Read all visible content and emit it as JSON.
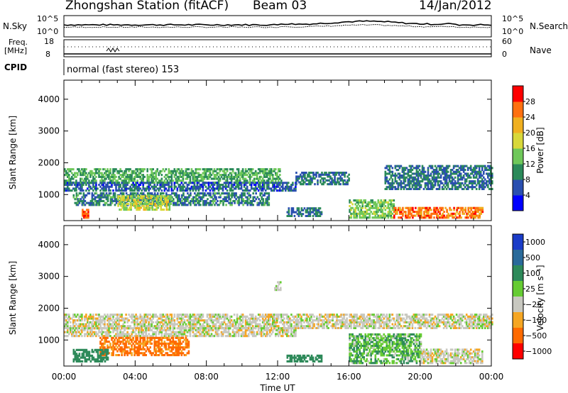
{
  "header": {
    "station": "Zhongshan Station (fitACF)",
    "beam": "Beam 03",
    "date": "14/Jan/2012"
  },
  "strip": {
    "left_top_label": "N.Sky",
    "left_top_ticks": [
      "10^5",
      "10^0"
    ],
    "right_top_label": "N.Search",
    "right_top_ticks": [
      "10^5",
      "10^0"
    ],
    "freq_label_1": "Freq.",
    "freq_label_2": "[MHz]",
    "freq_ticks": [
      "18",
      "8"
    ],
    "nave_label": "Nave",
    "nave_ticks": [
      "60",
      "0"
    ],
    "cpid_label": "CPID",
    "cpid_text": "normal (fast stereo) 153"
  },
  "chart_data": [
    {
      "type": "heatmap",
      "title": "",
      "parameter": "Power",
      "xlabel": "Time UT",
      "ylabel": "Slant Range [km]",
      "x_ticks": [
        "00:00",
        "04:00",
        "08:00",
        "12:00",
        "16:00",
        "20:00",
        "00:00"
      ],
      "xlim": [
        0,
        24
      ],
      "y_ticks": [
        1000,
        2000,
        3000,
        4000
      ],
      "ylim": [
        180,
        4600
      ],
      "colorbar": {
        "label": "Power [dB]",
        "ticks": [
          4,
          8,
          12,
          16,
          20,
          24,
          28
        ],
        "range": [
          0,
          32
        ],
        "colors": [
          "#0000ff",
          "#2a4fb0",
          "#2b8a5a",
          "#6fc85a",
          "#d8d83a",
          "#f0b020",
          "#ff7010",
          "#ff0000"
        ]
      },
      "regions": [
        {
          "t": [
            0.0,
            12.2
          ],
          "r": [
            1350,
            1800
          ],
          "level": 12
        },
        {
          "t": [
            0.0,
            13.0
          ],
          "r": [
            1100,
            1350
          ],
          "level": 7
        },
        {
          "t": [
            0.5,
            11.5
          ],
          "r": [
            650,
            1050
          ],
          "level": 9
        },
        {
          "t": [
            3.0,
            6.0
          ],
          "r": [
            500,
            950
          ],
          "level": 17
        },
        {
          "t": [
            13.0,
            16.0
          ],
          "r": [
            1300,
            1700
          ],
          "level": 8
        },
        {
          "t": [
            18.0,
            24.0
          ],
          "r": [
            1150,
            1900
          ],
          "level": 8
        },
        {
          "t": [
            16.0,
            18.5
          ],
          "r": [
            250,
            800
          ],
          "level": 14
        },
        {
          "t": [
            18.5,
            23.5
          ],
          "r": [
            250,
            600
          ],
          "level": 26
        },
        {
          "t": [
            1.0,
            1.4
          ],
          "r": [
            250,
            550
          ],
          "level": 28
        },
        {
          "t": [
            12.5,
            14.5
          ],
          "r": [
            300,
            550
          ],
          "level": 8
        }
      ]
    },
    {
      "type": "heatmap",
      "title": "",
      "parameter": "Velocity",
      "xlabel": "Time UT",
      "ylabel": "Slant Range [km]",
      "x_ticks": [
        "00:00",
        "04:00",
        "08:00",
        "12:00",
        "16:00",
        "20:00",
        "00:00"
      ],
      "xlim": [
        0,
        24
      ],
      "y_ticks": [
        1000,
        2000,
        3000,
        4000
      ],
      "ylim": [
        180,
        4600
      ],
      "colorbar": {
        "label": "Velocity [m s⁻¹]",
        "ticks": [
          "1000",
          "500",
          "100",
          "25",
          "−25",
          "−100",
          "−500",
          "−1000"
        ],
        "colors": [
          "#1a3cc8",
          "#2a6a9a",
          "#2e8a5a",
          "#66cc33",
          "#c8c8c0",
          "#f5a623",
          "#ff6a00",
          "#ff0000"
        ]
      },
      "regions": [
        {
          "t": [
            0.0,
            24.0
          ],
          "r": [
            1350,
            1800
          ],
          "v": 0
        },
        {
          "t": [
            0.0,
            13.0
          ],
          "r": [
            1100,
            1350
          ],
          "v": 0
        },
        {
          "t": [
            2.0,
            7.0
          ],
          "r": [
            500,
            1050
          ],
          "v": -150
        },
        {
          "t": [
            0.5,
            2.5
          ],
          "r": [
            300,
            700
          ],
          "v": 300
        },
        {
          "t": [
            16.0,
            20.0
          ],
          "r": [
            250,
            1200
          ],
          "v": 80
        },
        {
          "t": [
            20.0,
            23.5
          ],
          "r": [
            250,
            700
          ],
          "v": 0
        },
        {
          "t": [
            12.5,
            14.5
          ],
          "r": [
            300,
            500
          ],
          "v": 300
        },
        {
          "t": [
            11.8,
            12.2
          ],
          "r": [
            2550,
            2800
          ],
          "v": 0
        }
      ]
    }
  ]
}
